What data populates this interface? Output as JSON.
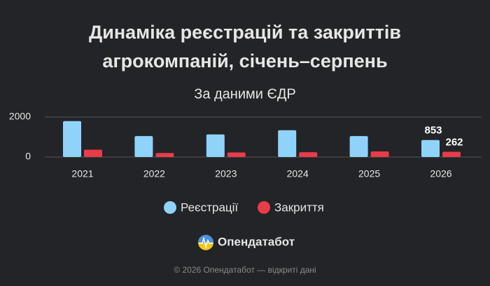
{
  "chart_data": {
    "type": "bar",
    "title": "Динаміка реєстрацій та закриттів\nагрокомпаній, січень–серпень",
    "subtitle": "За даними ЄДР",
    "categories": [
      "2021",
      "2022",
      "2023",
      "2024",
      "2025",
      "2026"
    ],
    "series": [
      {
        "name": "Реєстрації",
        "color": "#8fd3fa",
        "values": [
          1800,
          1050,
          1130,
          1340,
          1050,
          853
        ]
      },
      {
        "name": "Закриття",
        "color": "#e83c4a",
        "values": [
          370,
          200,
          230,
          240,
          280,
          262
        ]
      }
    ],
    "data_labels": "last",
    "ylim": [
      0,
      2000
    ],
    "yticks": [
      0,
      2000
    ],
    "grid": true,
    "legend": "bottom"
  },
  "brand": "Опендатабот",
  "footer": "© 2026 Опендатабот — відкриті дані"
}
